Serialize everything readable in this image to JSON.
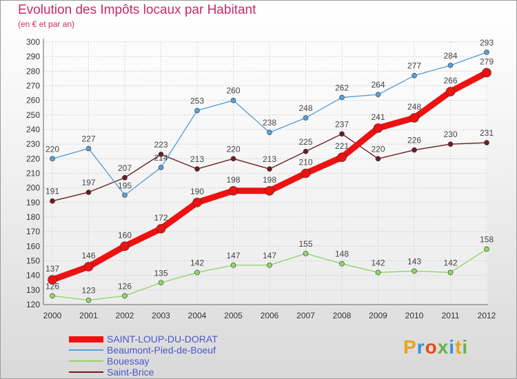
{
  "title": "Evolution des Impôts locaux par Habitant",
  "subtitle": "(en € et par an)",
  "logo": "Proxiti",
  "chart_data": {
    "type": "line",
    "title": "Evolution des Impôts locaux par Habitant",
    "ylabel": "(en € et par an)",
    "xlabel": "",
    "ylim": [
      120,
      300
    ],
    "ytick_step": 10,
    "grid": true,
    "x": [
      "2000",
      "2001",
      "2002",
      "2003",
      "2004",
      "2005",
      "2006",
      "2007",
      "2008",
      "2009",
      "2010",
      "2011",
      "2012"
    ],
    "series": [
      {
        "name": "Saint-Brice",
        "color": "#6b1d25",
        "values": [
          191,
          197,
          207,
          223,
          213,
          220,
          213,
          225,
          237,
          220,
          226,
          230,
          231
        ]
      },
      {
        "name": "Bouessay",
        "color": "#8fd66a",
        "values": [
          126,
          123,
          126,
          135,
          142,
          147,
          147,
          155,
          148,
          142,
          143,
          142,
          158
        ]
      },
      {
        "name": "Beaumont-Pied-de-Boeuf",
        "color": "#5a9fd4",
        "values": [
          220,
          227,
          195,
          214,
          253,
          260,
          238,
          248,
          262,
          264,
          277,
          284,
          293
        ]
      },
      {
        "name": "SAINT-LOUP-DU-DORAT",
        "color": "#ee1111",
        "values": [
          137,
          146,
          160,
          172,
          190,
          198,
          198,
          210,
          221,
          241,
          248,
          266,
          279
        ]
      }
    ],
    "legend_order": [
      "SAINT-LOUP-DU-DORAT",
      "Beaumont-Pied-de-Boeuf",
      "Bouessay",
      "Saint-Brice"
    ],
    "legend_position": "bottom-left"
  }
}
